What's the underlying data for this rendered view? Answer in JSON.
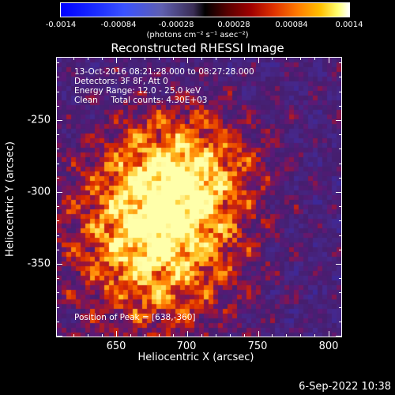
{
  "colorbar": {
    "ticks": [
      "-0.0014",
      "-0.00084",
      "-0.00028",
      "0.00028",
      "0.00084",
      "0.0014"
    ],
    "unit": "(photons cm⁻² s⁻¹ asec⁻²)"
  },
  "title": "Reconstructed RHESSI Image",
  "info_lines": [
    "13-Oct-2016 08:21:28.000 to 08:27:28.000",
    "Detectors: 3F 8F, Att 0",
    "Energy Range: 12.0 - 25.0 keV",
    "Clean     Total counts: 4.30E+03"
  ],
  "peak_text": "Position of Peak = [638,-360]",
  "axes": {
    "xlabel": "Heliocentric X (arcsec)",
    "ylabel": "Heliocentric Y (arcsec)",
    "xticks": [
      "650",
      "700",
      "750",
      "800"
    ],
    "yticks": [
      "-250",
      "-300",
      "-350"
    ]
  },
  "timestamp": "6-Sep-2022 10:38"
}
